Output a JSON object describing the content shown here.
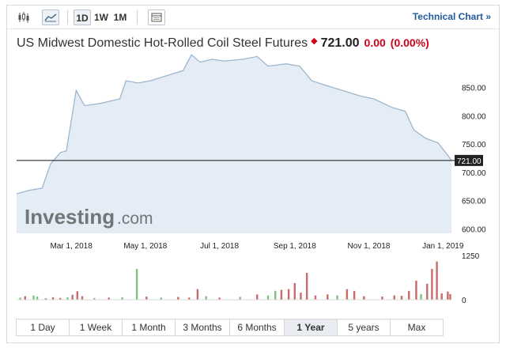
{
  "toolbar": {
    "candles_icon": "candlestick-icon",
    "area_icon": "area-chart-icon",
    "periods": [
      "1D",
      "1W",
      "1M"
    ],
    "active_period": "1D",
    "calendar_icon": "calendar-icon",
    "technical_link": "Technical Chart »"
  },
  "header": {
    "title": "US Midwest Domestic Hot-Rolled Coil Steel Futures",
    "price": "721.00",
    "change": "0.00",
    "change_pct": "(0.00%)"
  },
  "watermark": {
    "brand": "Investing",
    "suffix": ".com"
  },
  "current_label": "721.00",
  "ranges": [
    "1 Day",
    "1 Week",
    "1 Month",
    "3 Months",
    "6 Months",
    "1 Year",
    "5 years",
    "Max"
  ],
  "active_range": "1 Year",
  "colors": {
    "line": "#9eb6cc",
    "fill": "#e4edf5",
    "up": "#7fbf7f",
    "down": "#c96b6b",
    "accent": "#1f5a9e",
    "negative": "#d0021b"
  },
  "chart_data": {
    "type": "area",
    "x_ticks": [
      "Mar 1, 2018",
      "May 1, 2018",
      "Jul 1, 2018",
      "Sep 1, 2018",
      "Nov 1, 2018",
      "Jan 1, 2019"
    ],
    "y_ticks": [
      "850.00",
      "800.00",
      "750.00",
      "700.00",
      "650.00",
      "600.00"
    ],
    "ylim": [
      592,
      900
    ],
    "current_price": 721,
    "price_series": [
      {
        "x": "2018-01-15",
        "y": 662
      },
      {
        "x": "2018-01-25",
        "y": 668
      },
      {
        "x": "2018-02-05",
        "y": 672
      },
      {
        "x": "2018-02-12",
        "y": 715
      },
      {
        "x": "2018-02-20",
        "y": 735
      },
      {
        "x": "2018-02-25",
        "y": 738
      },
      {
        "x": "2018-03-05",
        "y": 845
      },
      {
        "x": "2018-03-12",
        "y": 818
      },
      {
        "x": "2018-03-25",
        "y": 822
      },
      {
        "x": "2018-04-10",
        "y": 830
      },
      {
        "x": "2018-04-15",
        "y": 862
      },
      {
        "x": "2018-04-25",
        "y": 858
      },
      {
        "x": "2018-05-05",
        "y": 862
      },
      {
        "x": "2018-05-20",
        "y": 872
      },
      {
        "x": "2018-06-01",
        "y": 880
      },
      {
        "x": "2018-06-08",
        "y": 908
      },
      {
        "x": "2018-06-15",
        "y": 895
      },
      {
        "x": "2018-06-25",
        "y": 900
      },
      {
        "x": "2018-07-05",
        "y": 897
      },
      {
        "x": "2018-07-20",
        "y": 900
      },
      {
        "x": "2018-08-01",
        "y": 905
      },
      {
        "x": "2018-08-10",
        "y": 888
      },
      {
        "x": "2018-08-25",
        "y": 892
      },
      {
        "x": "2018-09-05",
        "y": 888
      },
      {
        "x": "2018-09-15",
        "y": 862
      },
      {
        "x": "2018-09-25",
        "y": 855
      },
      {
        "x": "2018-10-10",
        "y": 845
      },
      {
        "x": "2018-10-25",
        "y": 835
      },
      {
        "x": "2018-11-05",
        "y": 830
      },
      {
        "x": "2018-11-20",
        "y": 815
      },
      {
        "x": "2018-12-01",
        "y": 808
      },
      {
        "x": "2018-12-08",
        "y": 775
      },
      {
        "x": "2018-12-18",
        "y": 760
      },
      {
        "x": "2018-12-28",
        "y": 752
      },
      {
        "x": "2019-01-05",
        "y": 730
      },
      {
        "x": "2019-01-08",
        "y": 721
      }
    ],
    "volume_ticks": [
      "1250",
      "0"
    ],
    "volume": [
      {
        "x": "2018-01-18",
        "v": 60,
        "dir": "up"
      },
      {
        "x": "2018-01-22",
        "v": 100,
        "dir": "down"
      },
      {
        "x": "2018-01-29",
        "v": 120,
        "dir": "up"
      },
      {
        "x": "2018-02-01",
        "v": 90,
        "dir": "up"
      },
      {
        "x": "2018-02-08",
        "v": 40,
        "dir": "down"
      },
      {
        "x": "2018-02-14",
        "v": 70,
        "dir": "down"
      },
      {
        "x": "2018-02-20",
        "v": 50,
        "dir": "down"
      },
      {
        "x": "2018-02-26",
        "v": 70,
        "dir": "up"
      },
      {
        "x": "2018-03-02",
        "v": 140,
        "dir": "down"
      },
      {
        "x": "2018-03-06",
        "v": 240,
        "dir": "down"
      },
      {
        "x": "2018-03-10",
        "v": 100,
        "dir": "down"
      },
      {
        "x": "2018-03-20",
        "v": 50,
        "dir": "up"
      },
      {
        "x": "2018-04-01",
        "v": 60,
        "dir": "down"
      },
      {
        "x": "2018-04-12",
        "v": 70,
        "dir": "up"
      },
      {
        "x": "2018-04-24",
        "v": 870,
        "dir": "up"
      },
      {
        "x": "2018-05-02",
        "v": 90,
        "dir": "down"
      },
      {
        "x": "2018-05-14",
        "v": 60,
        "dir": "up"
      },
      {
        "x": "2018-05-28",
        "v": 80,
        "dir": "down"
      },
      {
        "x": "2018-06-06",
        "v": 60,
        "dir": "down"
      },
      {
        "x": "2018-06-13",
        "v": 300,
        "dir": "down"
      },
      {
        "x": "2018-06-20",
        "v": 100,
        "dir": "up"
      },
      {
        "x": "2018-07-01",
        "v": 60,
        "dir": "down"
      },
      {
        "x": "2018-07-18",
        "v": 80,
        "dir": "up"
      },
      {
        "x": "2018-08-01",
        "v": 150,
        "dir": "down"
      },
      {
        "x": "2018-08-10",
        "v": 120,
        "dir": "up"
      },
      {
        "x": "2018-08-16",
        "v": 250,
        "dir": "up"
      },
      {
        "x": "2018-08-21",
        "v": 280,
        "dir": "down"
      },
      {
        "x": "2018-08-27",
        "v": 300,
        "dir": "down"
      },
      {
        "x": "2018-09-01",
        "v": 470,
        "dir": "down"
      },
      {
        "x": "2018-09-06",
        "v": 200,
        "dir": "down"
      },
      {
        "x": "2018-09-11",
        "v": 760,
        "dir": "down"
      },
      {
        "x": "2018-09-18",
        "v": 120,
        "dir": "down"
      },
      {
        "x": "2018-09-28",
        "v": 150,
        "dir": "down"
      },
      {
        "x": "2018-10-06",
        "v": 120,
        "dir": "up"
      },
      {
        "x": "2018-10-14",
        "v": 300,
        "dir": "down"
      },
      {
        "x": "2018-10-20",
        "v": 250,
        "dir": "down"
      },
      {
        "x": "2018-10-28",
        "v": 100,
        "dir": "down"
      },
      {
        "x": "2018-11-12",
        "v": 90,
        "dir": "down"
      },
      {
        "x": "2018-11-22",
        "v": 120,
        "dir": "down"
      },
      {
        "x": "2018-11-28",
        "v": 110,
        "dir": "down"
      },
      {
        "x": "2018-12-04",
        "v": 250,
        "dir": "down"
      },
      {
        "x": "2018-12-10",
        "v": 540,
        "dir": "down"
      },
      {
        "x": "2018-12-14",
        "v": 160,
        "dir": "up"
      },
      {
        "x": "2018-12-19",
        "v": 450,
        "dir": "down"
      },
      {
        "x": "2018-12-23",
        "v": 870,
        "dir": "down"
      },
      {
        "x": "2018-12-27",
        "v": 1080,
        "dir": "down"
      },
      {
        "x": "2018-12-31",
        "v": 180,
        "dir": "down"
      },
      {
        "x": "2019-01-05",
        "v": 230,
        "dir": "down"
      },
      {
        "x": "2019-01-07",
        "v": 160,
        "dir": "down"
      }
    ]
  }
}
